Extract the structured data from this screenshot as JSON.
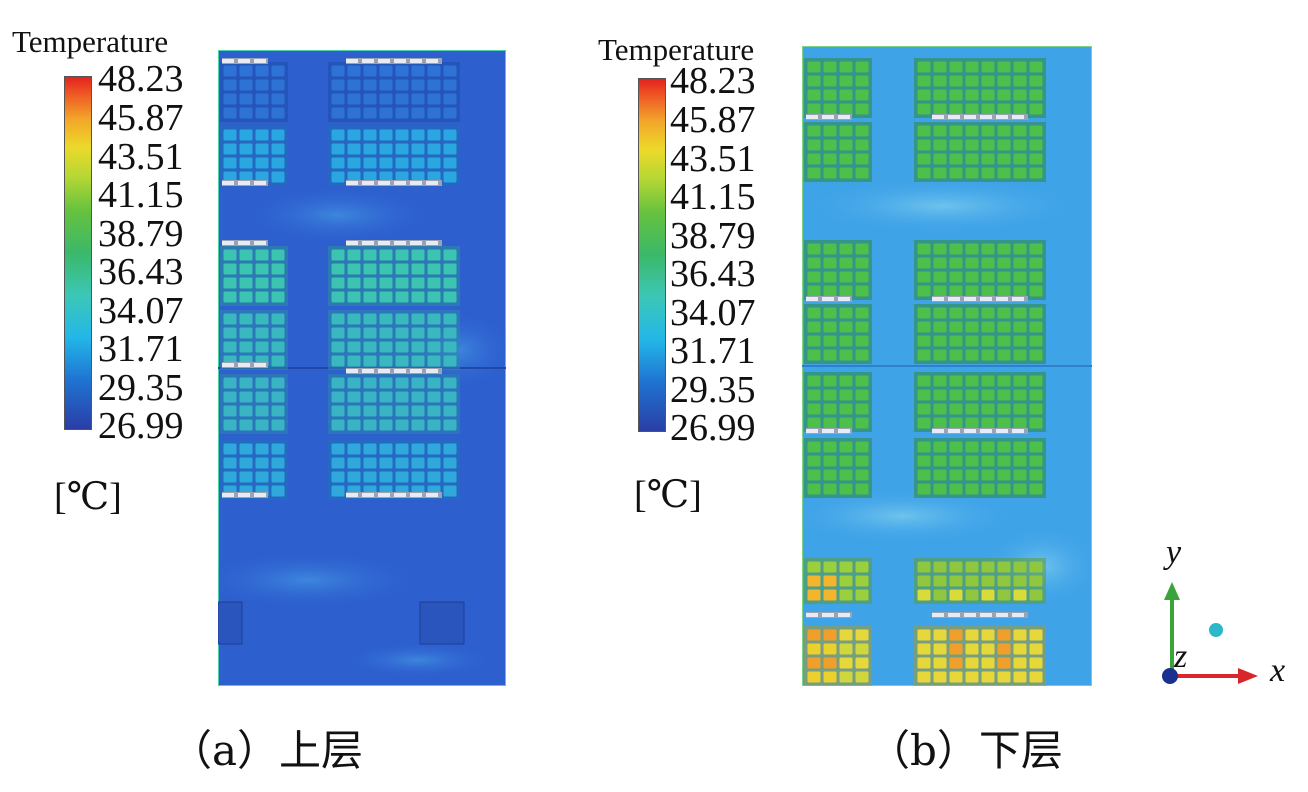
{
  "panel_a": {
    "legend": {
      "title": "Temperature",
      "ticks": [
        "48.23",
        "45.87",
        "43.51",
        "41.15",
        "38.79",
        "36.43",
        "34.07",
        "31.71",
        "29.35",
        "26.99"
      ],
      "unit": "[℃]"
    },
    "caption": "（a）上层"
  },
  "panel_b": {
    "legend": {
      "title": "Temperature",
      "ticks": [
        "48.23",
        "45.87",
        "43.51",
        "41.15",
        "38.79",
        "36.43",
        "34.07",
        "31.71",
        "29.35",
        "26.99"
      ],
      "unit": "[℃]"
    },
    "caption": "（b）下层"
  },
  "axes": {
    "y_label": "y",
    "x_label": "x",
    "z_label": "z"
  },
  "colors": {
    "low": "#2a3ea6",
    "cool": "#23b7e8",
    "mid": "#3bb86a",
    "warm": "#ecd92a",
    "high": "#e2231f",
    "upper_background": "#2d5fcf",
    "lower_background": "#3fa3e8"
  }
}
